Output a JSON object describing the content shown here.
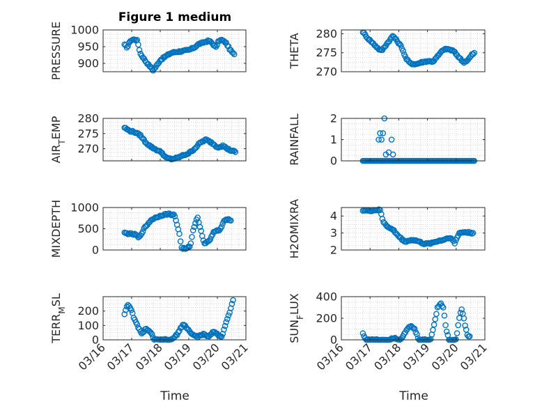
{
  "figure": {
    "title": "Figure 1 medium",
    "xlabel": "Time"
  },
  "marker_color": "#0072BD",
  "chart_data": [
    {
      "id": "pressure",
      "type": "scatter",
      "ylabel": "PRESSURE",
      "ylim": [
        875,
        1000
      ],
      "yticks": [
        900,
        950,
        1000
      ],
      "xlim": [
        0,
        5
      ],
      "xticks": [
        0,
        1,
        2,
        3,
        4,
        5
      ],
      "xticklabels": [
        "03/16",
        "03/17",
        "03/18",
        "03/19",
        "03/20",
        "03/21"
      ],
      "show_xticklabels": false,
      "grid": true,
      "keys": [
        [
          0.75,
          955
        ],
        [
          0.85,
          948
        ],
        [
          0.95,
          968
        ],
        [
          1.1,
          972
        ],
        [
          1.2,
          968
        ],
        [
          1.3,
          930
        ],
        [
          1.5,
          905
        ],
        [
          1.6,
          895
        ],
        [
          1.75,
          880
        ],
        [
          1.85,
          890
        ],
        [
          2.0,
          910
        ],
        [
          2.2,
          922
        ],
        [
          2.4,
          932
        ],
        [
          2.6,
          935
        ],
        [
          2.8,
          937
        ],
        [
          3.0,
          940
        ],
        [
          3.2,
          948
        ],
        [
          3.35,
          958
        ],
        [
          3.5,
          962
        ],
        [
          3.7,
          968
        ],
        [
          3.8,
          962
        ],
        [
          3.95,
          948
        ],
        [
          4.05,
          968
        ],
        [
          4.15,
          970
        ],
        [
          4.3,
          962
        ],
        [
          4.45,
          940
        ],
        [
          4.6,
          925
        ]
      ]
    },
    {
      "id": "theta",
      "type": "scatter",
      "ylabel": "THETA",
      "ylim": [
        270,
        281
      ],
      "yticks": [
        270,
        275,
        280
      ],
      "xlim": [
        0,
        5
      ],
      "xticks": [
        0,
        1,
        2,
        3,
        4,
        5
      ],
      "xticklabels": [
        "03/16",
        "03/17",
        "03/18",
        "03/19",
        "03/20",
        "03/21"
      ],
      "show_xticklabels": false,
      "grid": true,
      "keys": [
        [
          0.75,
          280.5
        ],
        [
          0.9,
          279
        ],
        [
          1.1,
          277.5
        ],
        [
          1.3,
          276
        ],
        [
          1.4,
          275.5
        ],
        [
          1.55,
          277
        ],
        [
          1.7,
          278.5
        ],
        [
          1.8,
          279.5
        ],
        [
          1.95,
          278
        ],
        [
          2.1,
          276.5
        ],
        [
          2.25,
          273.5
        ],
        [
          2.4,
          272.2
        ],
        [
          2.6,
          272
        ],
        [
          2.8,
          272.5
        ],
        [
          3.0,
          272.8
        ],
        [
          3.2,
          272.7
        ],
        [
          3.4,
          274.5
        ],
        [
          3.55,
          275.8
        ],
        [
          3.7,
          276
        ],
        [
          3.9,
          275.5
        ],
        [
          4.1,
          273.8
        ],
        [
          4.25,
          272.5
        ],
        [
          4.4,
          273
        ],
        [
          4.55,
          274.5
        ],
        [
          4.65,
          275
        ]
      ]
    },
    {
      "id": "air_temp",
      "type": "scatter",
      "ylabel": "AIR_TEMP",
      "ylim": [
        266,
        280
      ],
      "yticks": [
        270,
        275,
        280
      ],
      "xlim": [
        0,
        5
      ],
      "xticks": [
        0,
        1,
        2,
        3,
        4,
        5
      ],
      "xticklabels": [
        "03/16",
        "03/17",
        "03/18",
        "03/19",
        "03/20",
        "03/21"
      ],
      "show_xticklabels": false,
      "grid": true,
      "keys": [
        [
          0.75,
          277
        ],
        [
          0.9,
          276
        ],
        [
          1.1,
          275.5
        ],
        [
          1.3,
          274.5
        ],
        [
          1.5,
          272
        ],
        [
          1.7,
          270.5
        ],
        [
          1.9,
          269.5
        ],
        [
          2.05,
          268.8
        ],
        [
          2.2,
          267
        ],
        [
          2.4,
          266.6
        ],
        [
          2.6,
          267
        ],
        [
          2.8,
          267.8
        ],
        [
          3.0,
          268.5
        ],
        [
          3.2,
          270
        ],
        [
          3.4,
          272
        ],
        [
          3.6,
          273
        ],
        [
          3.8,
          272
        ],
        [
          4.0,
          270.5
        ],
        [
          4.2,
          271
        ],
        [
          4.35,
          270
        ],
        [
          4.5,
          269.3
        ],
        [
          4.65,
          269
        ]
      ]
    },
    {
      "id": "rainfall",
      "type": "scatter",
      "ylabel": "RAINFALL",
      "ylim": [
        0,
        2
      ],
      "yticks": [
        0,
        1,
        2
      ],
      "xlim": [
        0,
        5
      ],
      "xticks": [
        0,
        1,
        2,
        3,
        4,
        5
      ],
      "xticklabels": [
        "03/16",
        "03/17",
        "03/18",
        "03/19",
        "03/20",
        "03/21"
      ],
      "show_xticklabels": false,
      "grid": true,
      "keys": [
        [
          0.75,
          0
        ],
        [
          4.65,
          0
        ]
      ],
      "extra_points": [
        [
          1.3,
          1.0
        ],
        [
          1.35,
          1.3
        ],
        [
          1.4,
          1.0
        ],
        [
          1.45,
          1.3
        ],
        [
          1.5,
          2.0
        ],
        [
          1.55,
          0.3
        ],
        [
          1.65,
          0.4
        ],
        [
          1.75,
          1.0
        ],
        [
          1.8,
          0.3
        ]
      ]
    },
    {
      "id": "mixdepth",
      "type": "scatter",
      "ylabel": "MIXDEPTH",
      "ylim": [
        0,
        1000
      ],
      "yticks": [
        0,
        500,
        1000
      ],
      "xlim": [
        0,
        5
      ],
      "xticks": [
        0,
        1,
        2,
        3,
        4,
        5
      ],
      "xticklabels": [
        "03/16",
        "03/17",
        "03/18",
        "03/19",
        "03/20",
        "03/21"
      ],
      "show_xticklabels": false,
      "grid": true,
      "keys": [
        [
          0.75,
          400
        ],
        [
          0.95,
          380
        ],
        [
          1.15,
          360
        ],
        [
          1.25,
          280
        ],
        [
          1.45,
          520
        ],
        [
          1.7,
          720
        ],
        [
          1.9,
          780
        ],
        [
          2.1,
          830
        ],
        [
          2.3,
          850
        ],
        [
          2.5,
          820
        ],
        [
          2.65,
          450
        ],
        [
          2.75,
          50
        ],
        [
          2.9,
          20
        ],
        [
          3.05,
          100
        ],
        [
          3.15,
          450
        ],
        [
          3.3,
          800
        ],
        [
          3.45,
          380
        ],
        [
          3.55,
          150
        ],
        [
          3.75,
          250
        ],
        [
          3.9,
          450
        ],
        [
          4.1,
          480
        ],
        [
          4.25,
          700
        ],
        [
          4.4,
          720
        ],
        [
          4.5,
          680
        ]
      ]
    },
    {
      "id": "h2omixra",
      "type": "scatter",
      "ylabel": "H2OMIXRA",
      "ylim": [
        2,
        4.5
      ],
      "yticks": [
        2,
        3,
        4
      ],
      "xlim": [
        0,
        5
      ],
      "xticks": [
        0,
        1,
        2,
        3,
        4,
        5
      ],
      "xticklabels": [
        "03/16",
        "03/17",
        "03/18",
        "03/19",
        "03/20",
        "03/21"
      ],
      "show_xticklabels": false,
      "grid": true,
      "keys": [
        [
          0.75,
          4.35
        ],
        [
          0.95,
          4.3
        ],
        [
          1.2,
          4.35
        ],
        [
          1.35,
          4.35
        ],
        [
          1.45,
          3.7
        ],
        [
          1.65,
          3.3
        ],
        [
          1.8,
          3.2
        ],
        [
          2.0,
          2.8
        ],
        [
          2.2,
          2.5
        ],
        [
          2.5,
          2.6
        ],
        [
          2.7,
          2.5
        ],
        [
          2.9,
          2.35
        ],
        [
          3.1,
          2.4
        ],
        [
          3.3,
          2.5
        ],
        [
          3.55,
          2.6
        ],
        [
          3.8,
          2.75
        ],
        [
          3.95,
          2.4
        ],
        [
          4.1,
          3.0
        ],
        [
          4.3,
          3.05
        ],
        [
          4.6,
          3.0
        ]
      ]
    },
    {
      "id": "terr_msl",
      "type": "scatter",
      "ylabel": "TERR_MSL",
      "ylim": [
        0,
        300
      ],
      "yticks": [
        0,
        100,
        200
      ],
      "xlim": [
        0,
        5
      ],
      "xticks": [
        0,
        1,
        2,
        3,
        4,
        5
      ],
      "xticklabels": [
        "03/16",
        "03/17",
        "03/18",
        "03/19",
        "03/20",
        "03/21"
      ],
      "show_xticklabels": true,
      "grid": true,
      "keys": [
        [
          0.75,
          180
        ],
        [
          0.85,
          250
        ],
        [
          1.0,
          200
        ],
        [
          1.1,
          140
        ],
        [
          1.2,
          100
        ],
        [
          1.35,
          40
        ],
        [
          1.5,
          80
        ],
        [
          1.6,
          60
        ],
        [
          1.7,
          40
        ],
        [
          1.8,
          0
        ],
        [
          2.0,
          0
        ],
        [
          2.2,
          0
        ],
        [
          2.4,
          0
        ],
        [
          2.6,
          40
        ],
        [
          2.8,
          110
        ],
        [
          2.95,
          80
        ],
        [
          3.1,
          40
        ],
        [
          3.3,
          20
        ],
        [
          3.5,
          40
        ],
        [
          3.7,
          20
        ],
        [
          3.85,
          60
        ],
        [
          4.0,
          40
        ],
        [
          4.15,
          20
        ],
        [
          4.3,
          120
        ],
        [
          4.45,
          200
        ],
        [
          4.55,
          280
        ]
      ]
    },
    {
      "id": "sun_flux",
      "type": "scatter",
      "ylabel": "SUN_FLUX",
      "ylim": [
        0,
        400
      ],
      "yticks": [
        0,
        200,
        400
      ],
      "xlim": [
        0,
        5
      ],
      "xticks": [
        0,
        1,
        2,
        3,
        4,
        5
      ],
      "xticklabels": [
        "03/16",
        "03/17",
        "03/18",
        "03/19",
        "03/20",
        "03/21"
      ],
      "show_xticklabels": true,
      "grid": true,
      "keys": [
        [
          0.75,
          60
        ],
        [
          0.85,
          0
        ],
        [
          1.6,
          0
        ],
        [
          1.85,
          20
        ],
        [
          2.05,
          0
        ],
        [
          2.2,
          60
        ],
        [
          2.4,
          130
        ],
        [
          2.55,
          100
        ],
        [
          2.7,
          0
        ],
        [
          3.1,
          0
        ],
        [
          3.2,
          100
        ],
        [
          3.35,
          300
        ],
        [
          3.45,
          340
        ],
        [
          3.55,
          300
        ],
        [
          3.65,
          100
        ],
        [
          3.75,
          0
        ],
        [
          4.0,
          0
        ],
        [
          4.1,
          200
        ],
        [
          4.2,
          290
        ],
        [
          4.3,
          150
        ],
        [
          4.4,
          40
        ],
        [
          4.5,
          30
        ]
      ]
    }
  ]
}
